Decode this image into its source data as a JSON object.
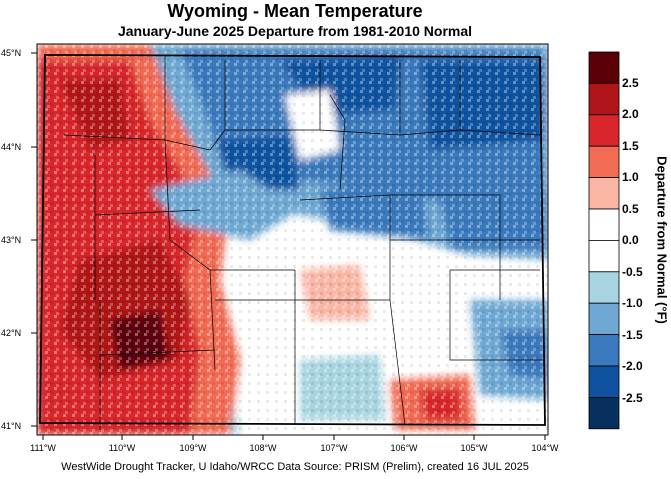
{
  "title": "Wyoming - Mean Temperature",
  "subtitle": "January-June 2025  Departure from 1981-2010 Normal",
  "axes": {
    "lat_labels": [
      "45°N",
      "44°N",
      "43°N",
      "42°N",
      "41°N"
    ],
    "lon_labels": [
      "111°W",
      "110°W",
      "109°W",
      "108°W",
      "107°W",
      "106°W",
      "105°W",
      "104°W"
    ]
  },
  "legend": {
    "title": "Departure from Normal (°F)",
    "labels": [
      "2.5",
      "2.0",
      "1.5",
      "1.0",
      "0.5",
      "0.0",
      "-0.5",
      "-1.0",
      "-1.5",
      "-2.0",
      "-2.5"
    ],
    "colors": [
      "#5c0008",
      "#b01519",
      "#d8262b",
      "#f26b53",
      "#fbb5a5",
      "#ffffff",
      "#ffffff",
      "#a7d4e0",
      "#6ea8d3",
      "#3a79bd",
      "#0f52a0",
      "#08305e"
    ]
  },
  "credit": "WestWide Drought Tracker, U Idaho/WRCC Data Source: PRISM (Prelim), created 16 JUL 2025"
}
